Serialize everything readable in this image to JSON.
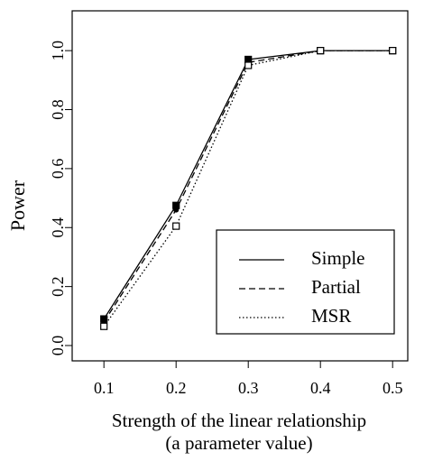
{
  "chart_data": {
    "type": "line",
    "ylabel": "Power",
    "xlabel": [
      "Strength of the linear relationship",
      "(a parameter value)"
    ],
    "x": [
      0.1,
      0.2,
      0.3,
      0.4,
      0.5
    ],
    "series": [
      {
        "name": "Simple",
        "color": "#000000",
        "dash": "solid",
        "marker": "filled-square",
        "values": [
          0.09,
          0.475,
          0.97,
          1.0,
          1.0
        ]
      },
      {
        "name": "Partial",
        "color": "#000000",
        "dash": "dashed",
        "marker": "filled-circle",
        "values": [
          0.08,
          0.46,
          0.96,
          1.0,
          1.0
        ]
      },
      {
        "name": "MSR",
        "color": "#000000",
        "dash": "dotted",
        "marker": "open-square",
        "values": [
          0.065,
          0.405,
          0.95,
          1.0,
          1.0
        ]
      }
    ],
    "xlim": [
      0.056,
      0.521
    ],
    "ylim": [
      -0.052,
      1.135
    ],
    "xticks": [
      0.1,
      0.2,
      0.3,
      0.4,
      0.5
    ],
    "yticks": [
      {
        "value": 0,
        "label": "0.0"
      },
      0.2,
      0.4,
      0.6,
      0.8,
      {
        "value": 1,
        "label": "1.0"
      }
    ],
    "legend": "bottom-right"
  }
}
